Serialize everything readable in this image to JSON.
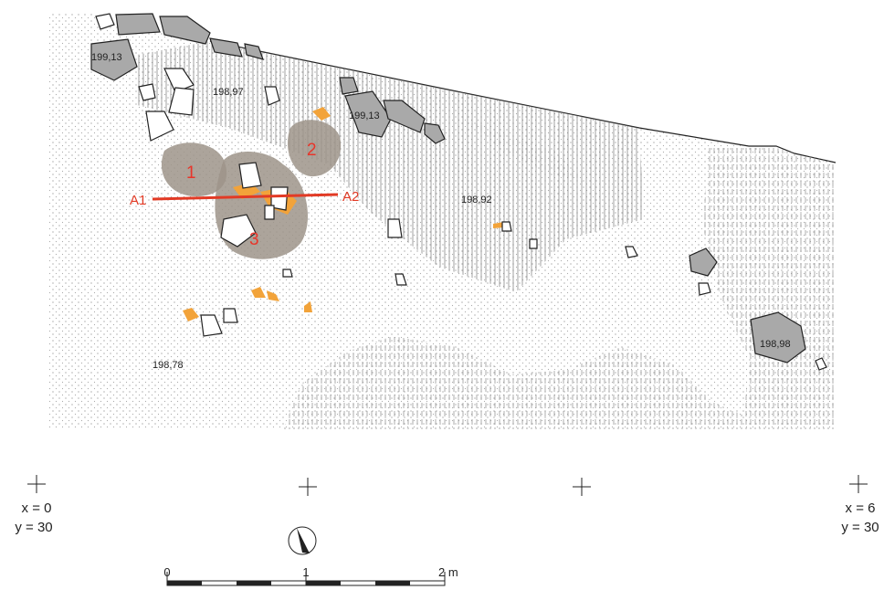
{
  "elevations": [
    "199,13",
    "198,97",
    "199,13",
    "198,92",
    "198,78",
    "198,98"
  ],
  "features": [
    "1",
    "2",
    "3"
  ],
  "section": {
    "start": "A1",
    "end": "A2"
  },
  "grid_points": [
    {
      "x": "x = 0",
      "y": "y = 30"
    },
    {
      "x": "x = 6",
      "y": "y = 30"
    }
  ],
  "scale": [
    "0",
    "1",
    "2 m"
  ]
}
